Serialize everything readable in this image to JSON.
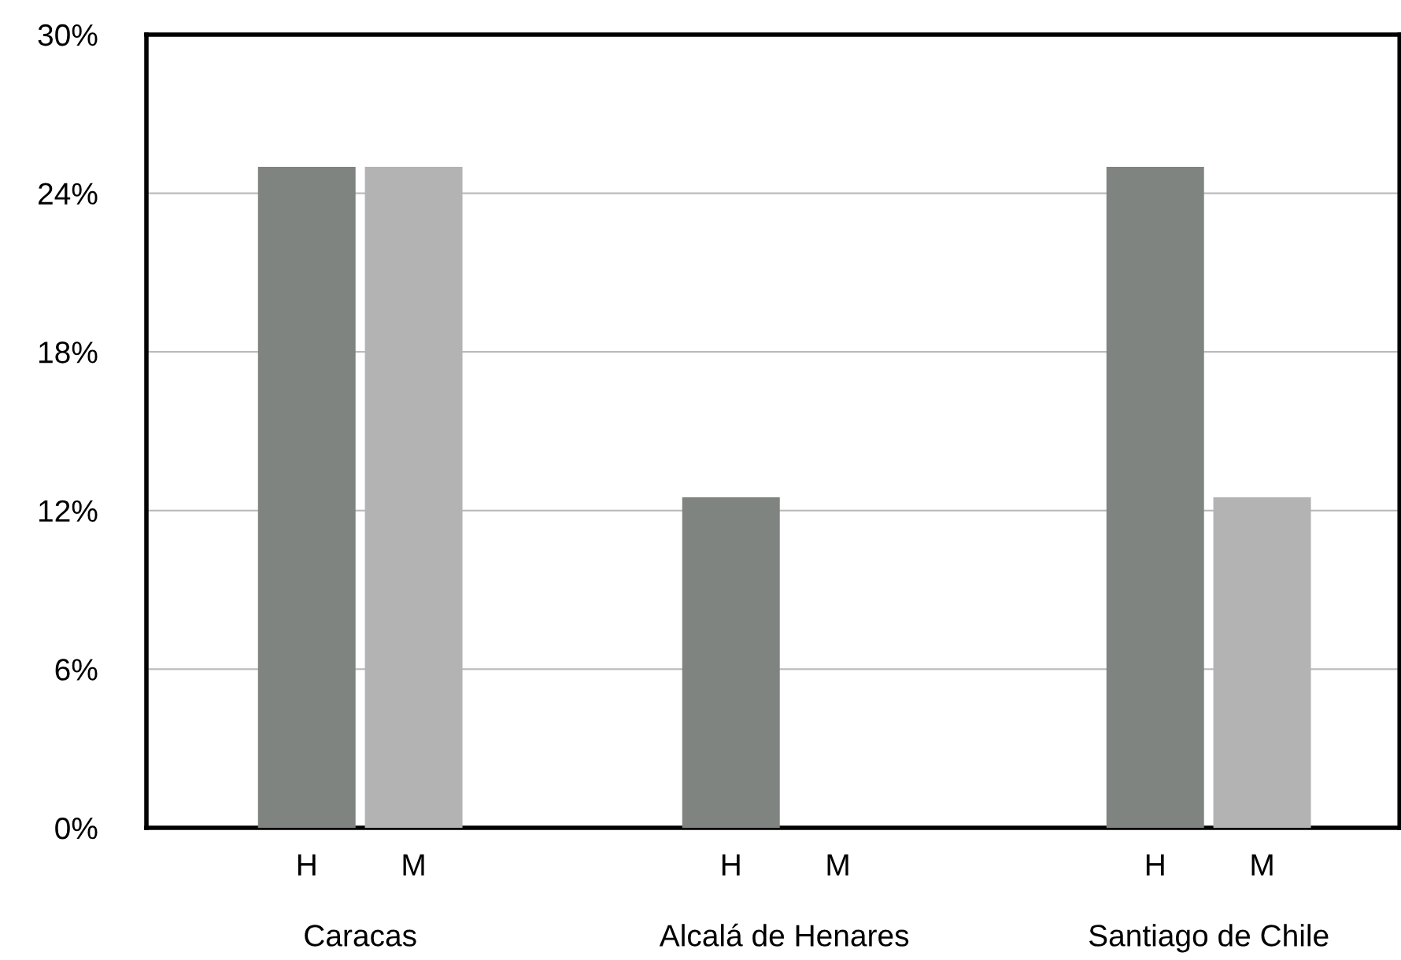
{
  "chart_data": {
    "type": "bar",
    "categories": [
      "Caracas",
      "Alcalá de Henares",
      "Santiago de Chile"
    ],
    "series": [
      {
        "name": "H",
        "color": "#7f8480",
        "values": [
          25,
          12.5,
          25
        ]
      },
      {
        "name": "M",
        "color": "#b3b3b3",
        "values": [
          25,
          0,
          12.5
        ]
      }
    ],
    "ylim": [
      0,
      30
    ],
    "yticks": [
      {
        "value": 0,
        "label": "0%"
      },
      {
        "value": 6,
        "label": "6%"
      },
      {
        "value": 12,
        "label": "12%"
      },
      {
        "value": 18,
        "label": "18%"
      },
      {
        "value": 24,
        "label": "24%"
      },
      {
        "value": 30,
        "label": "30%"
      }
    ],
    "grid": "y",
    "legend": false
  }
}
